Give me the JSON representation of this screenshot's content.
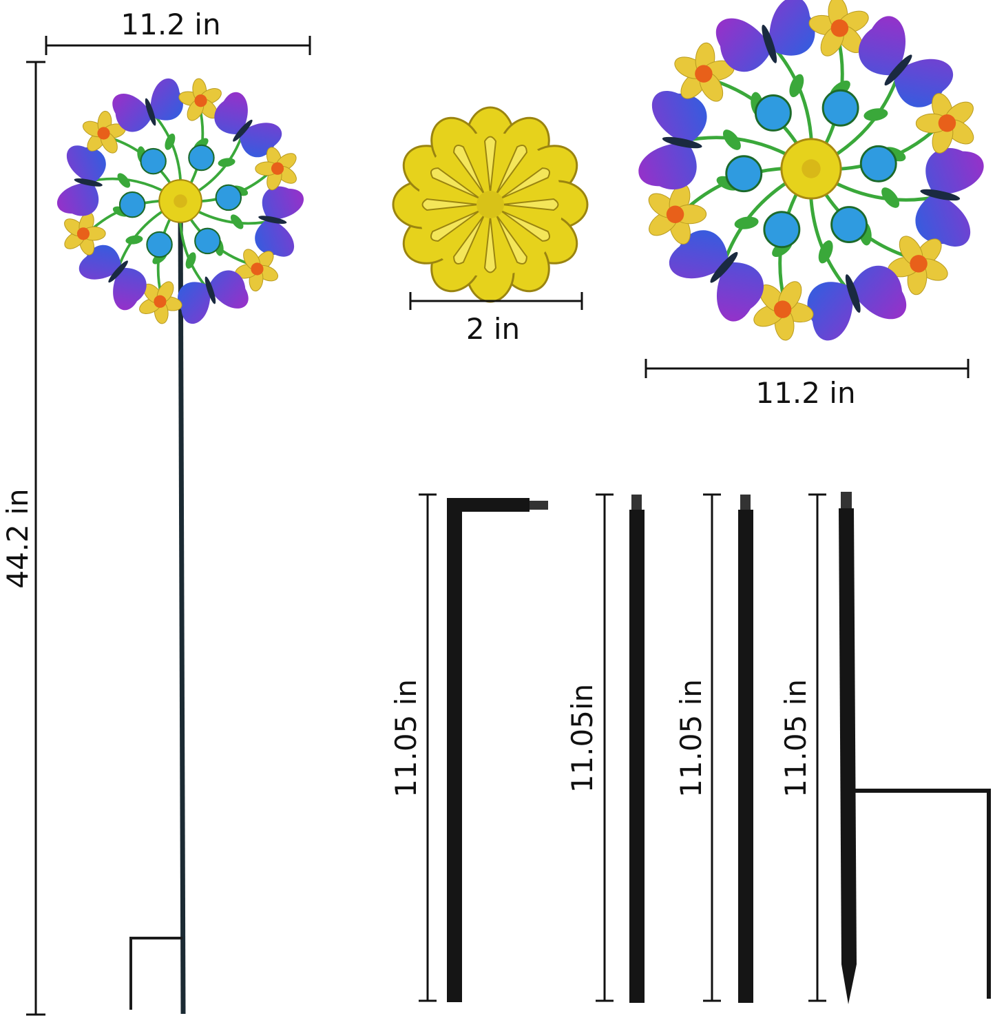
{
  "dimensions": {
    "spinner_width": "11.2 in",
    "total_height": "44.2 in",
    "center_disc": "2 in",
    "large_spinner_width": "11.2 in",
    "rods": [
      "11.05 in",
      "11.05in",
      "11.05 in",
      "11.05 in"
    ]
  },
  "colors": {
    "butterfly_blue": "#2f5fe0",
    "butterfly_purple": "#9a2fc8",
    "petal_yellow": "#e8c83a",
    "flower_center": "#e8601a",
    "gem_blue": "#2f9be0",
    "leaf_green": "#3aa83a",
    "disc_yellow": "#e6d21c",
    "pole": "#151515"
  }
}
